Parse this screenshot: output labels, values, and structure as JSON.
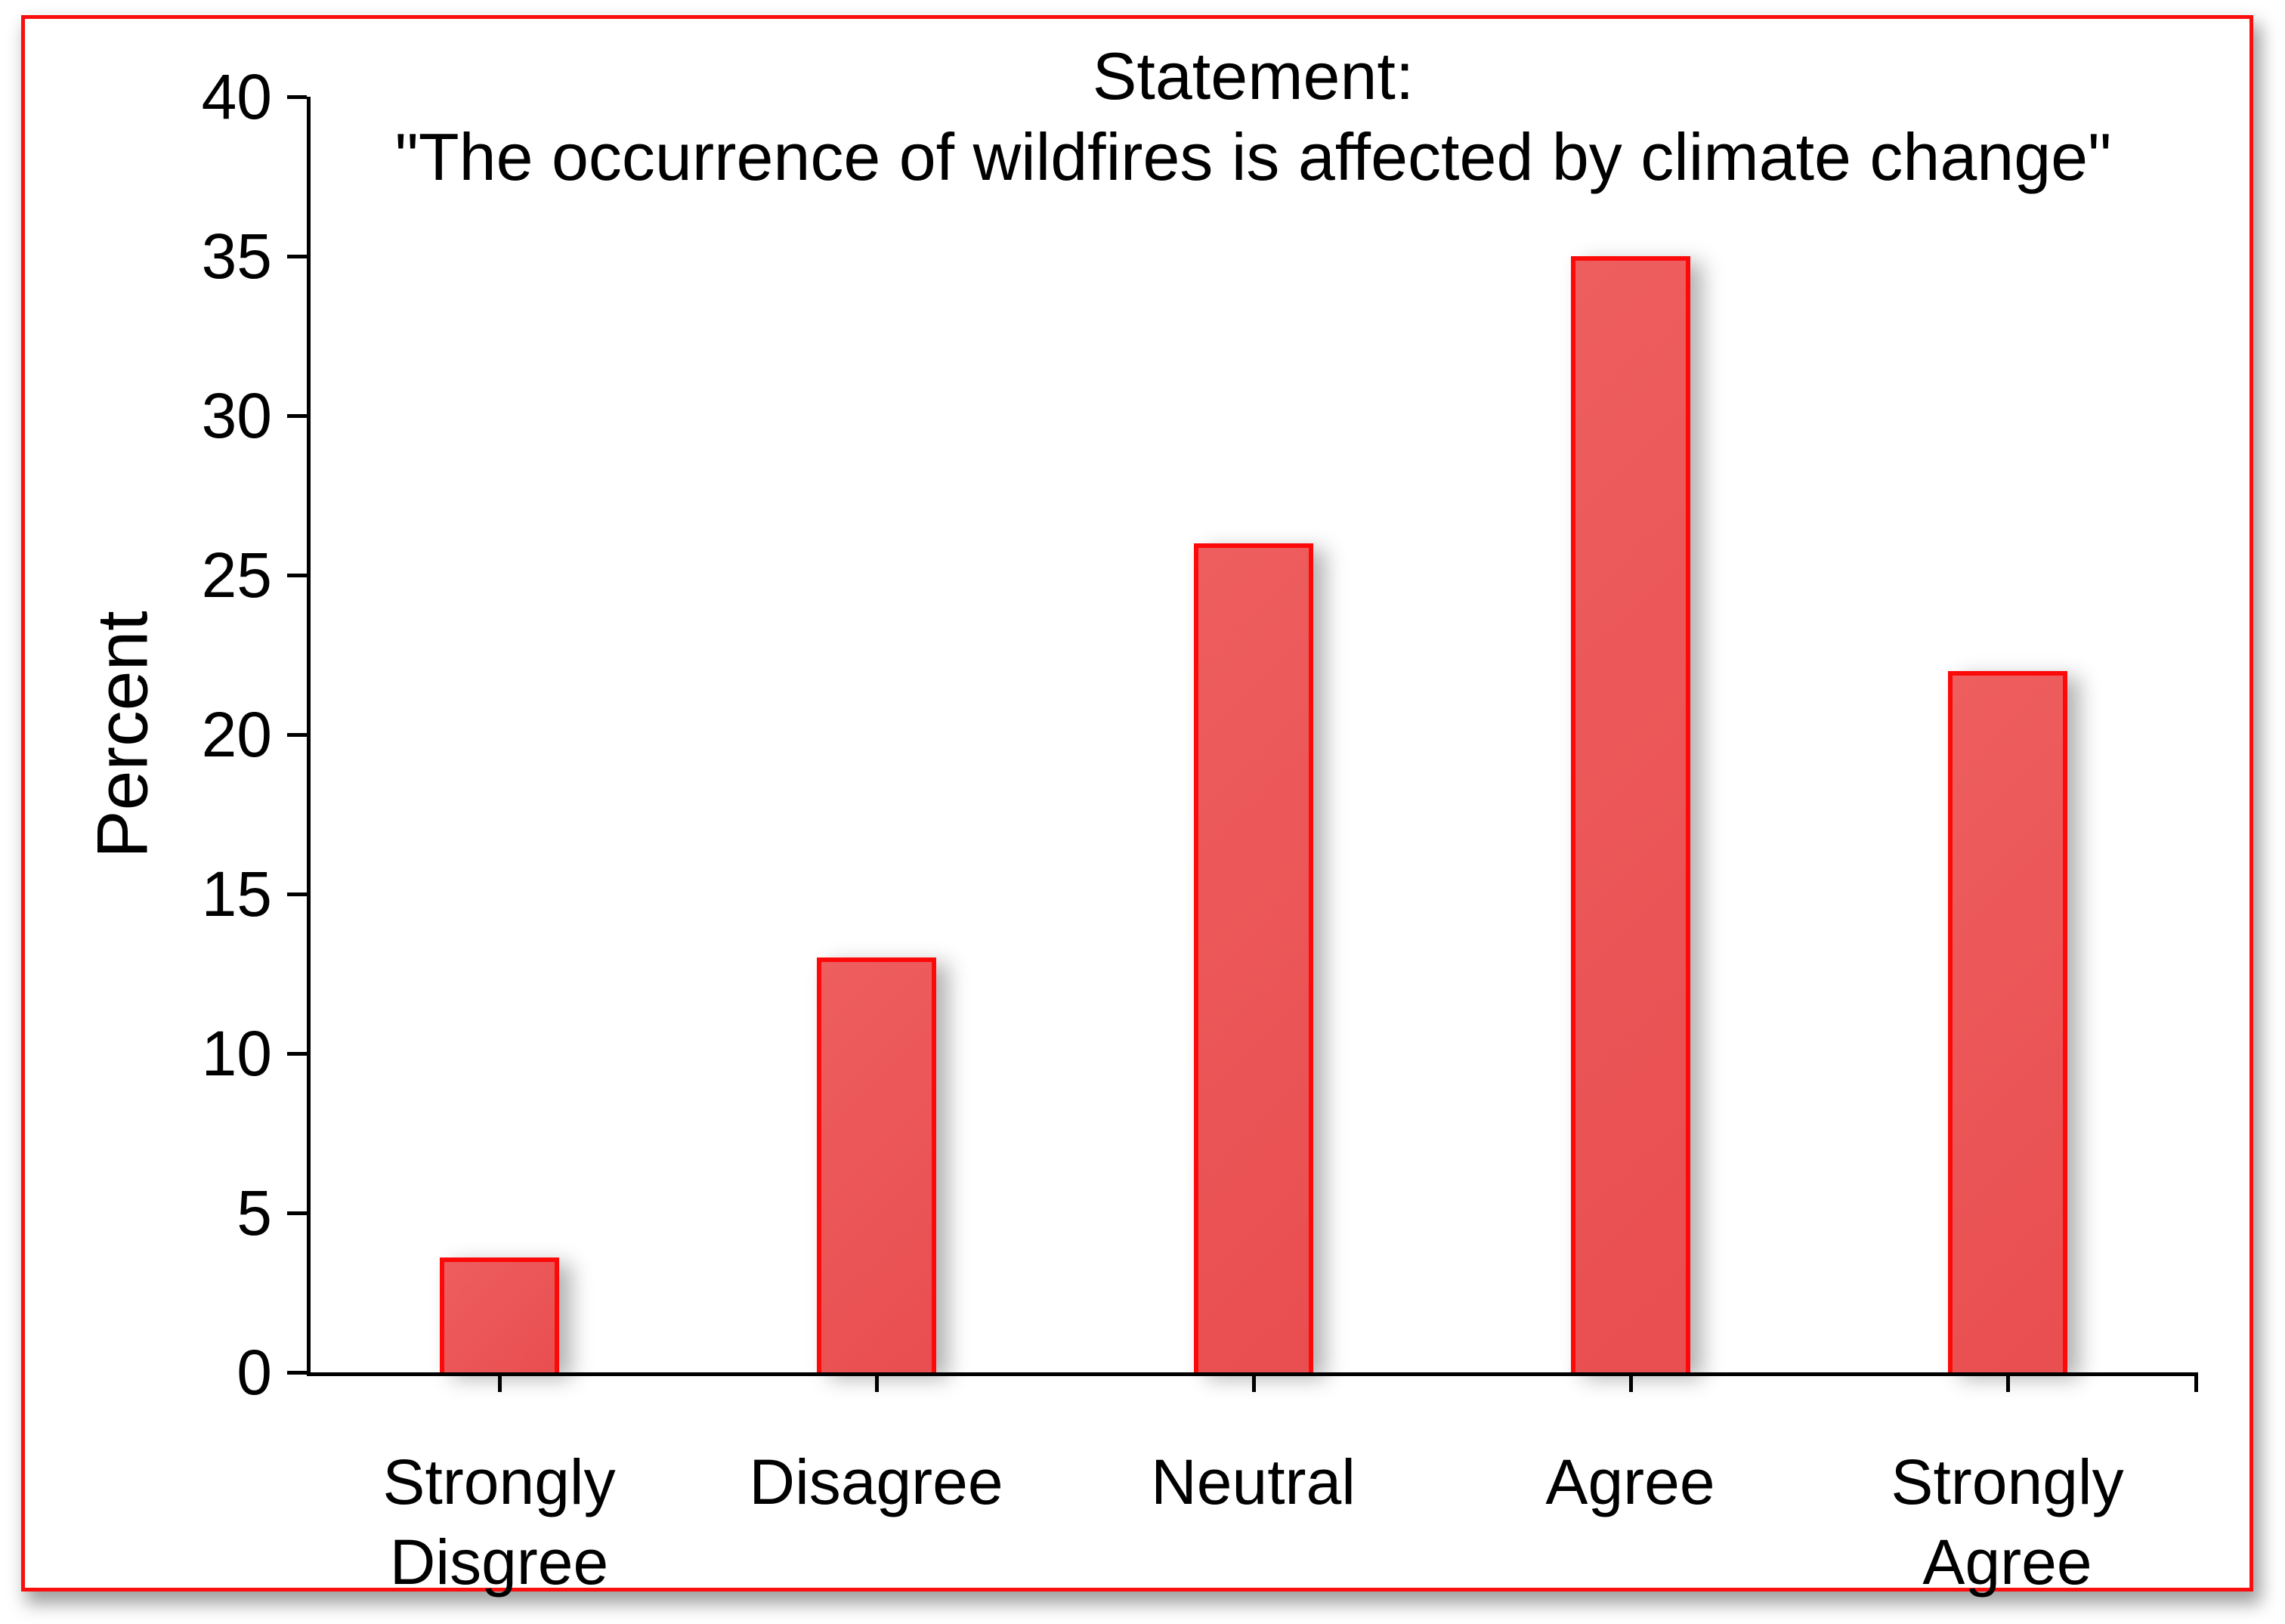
{
  "chart_data": {
    "type": "bar",
    "title_line1": "Statement:",
    "title_line2": "\"The occurrence of wildfires is affected by climate change\"",
    "ylabel": "Percent",
    "categories": [
      "Strongly\nDisgree",
      "Disagree",
      "Neutral",
      "Agree",
      "Strongly Agree"
    ],
    "values": [
      3.6,
      13,
      26,
      35,
      22
    ],
    "ylim": [
      0,
      40
    ],
    "ytick_step": 5,
    "ytick_labels": [
      "0",
      "5",
      "10",
      "15",
      "20",
      "25",
      "30",
      "35",
      "40"
    ],
    "grid": false,
    "legend": false,
    "colors": {
      "bar_fill": "#EA5455",
      "bar_border": "#FC0A0A",
      "axis": "#000000",
      "text": "#000000",
      "frame_border": "#FA0F0F",
      "background": "#FFFFFF"
    }
  }
}
